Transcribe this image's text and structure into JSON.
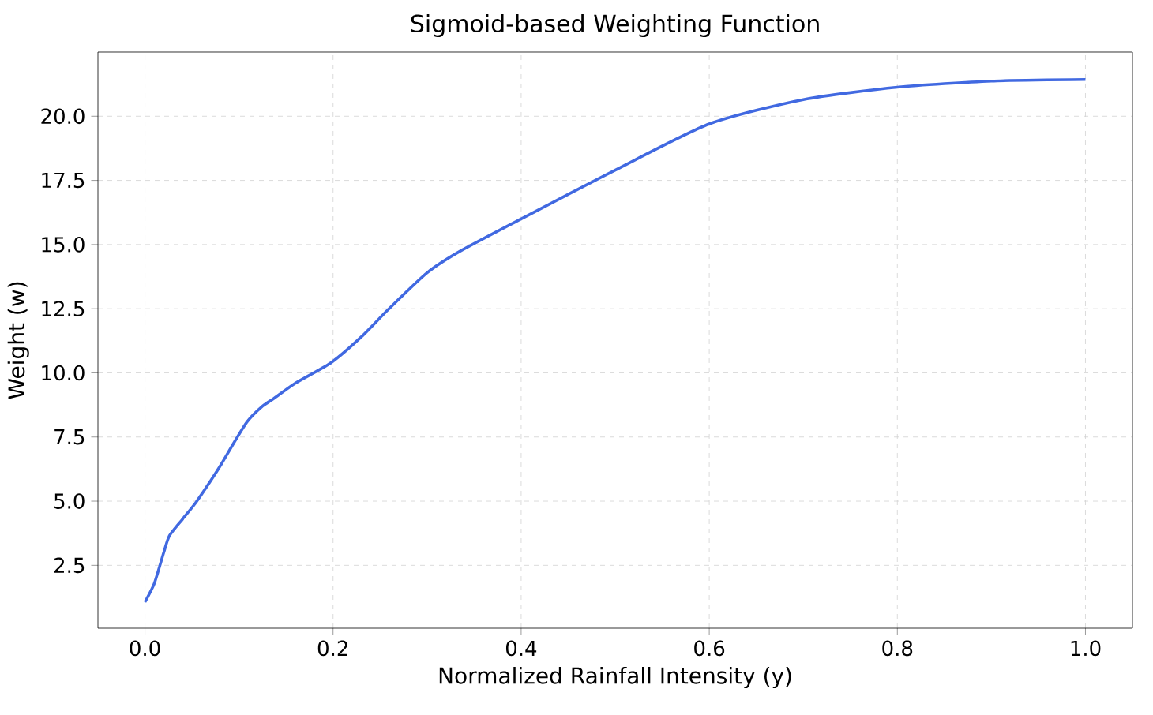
{
  "chart_data": {
    "type": "line",
    "title": "Sigmoid-based Weighting Function",
    "xlabel": "Normalized Rainfall Intensity (y)",
    "ylabel": "Weight (w)",
    "x": [
      0,
      0.01,
      0.02,
      0.026,
      0.04,
      0.054,
      0.07,
      0.081,
      0.095,
      0.109,
      0.125,
      0.137,
      0.16,
      0.198,
      0.23,
      0.259,
      0.3,
      0.336,
      0.4,
      0.5,
      0.6,
      0.7,
      0.8,
      0.9,
      1.0
    ],
    "series": [
      {
        "color": "#4169e1",
        "values": [
          1.07,
          1.8,
          3.0,
          3.65,
          4.3,
          4.94,
          5.8,
          6.43,
          7.3,
          8.11,
          8.7,
          9.0,
          9.6,
          10.4,
          11.4,
          12.48,
          13.9,
          14.76,
          16.0,
          17.9,
          19.7,
          20.65,
          21.13,
          21.37,
          21.43
        ]
      }
    ],
    "xlim": [
      -0.05,
      1.05
    ],
    "ylim": [
      0.05,
      22.5
    ],
    "xticks": [
      {
        "value": 0,
        "label": "0.0"
      },
      0.2,
      0.4,
      0.6,
      0.8,
      {
        "value": 1,
        "label": "1.0"
      }
    ],
    "yticks": [
      2.5,
      {
        "value": 5,
        "label": "5.0"
      },
      7.5,
      {
        "value": 10,
        "label": "10.0"
      },
      12.5,
      {
        "value": 15,
        "label": "15.0"
      },
      17.5,
      {
        "value": 20,
        "label": "20.0"
      }
    ],
    "grid": true
  }
}
